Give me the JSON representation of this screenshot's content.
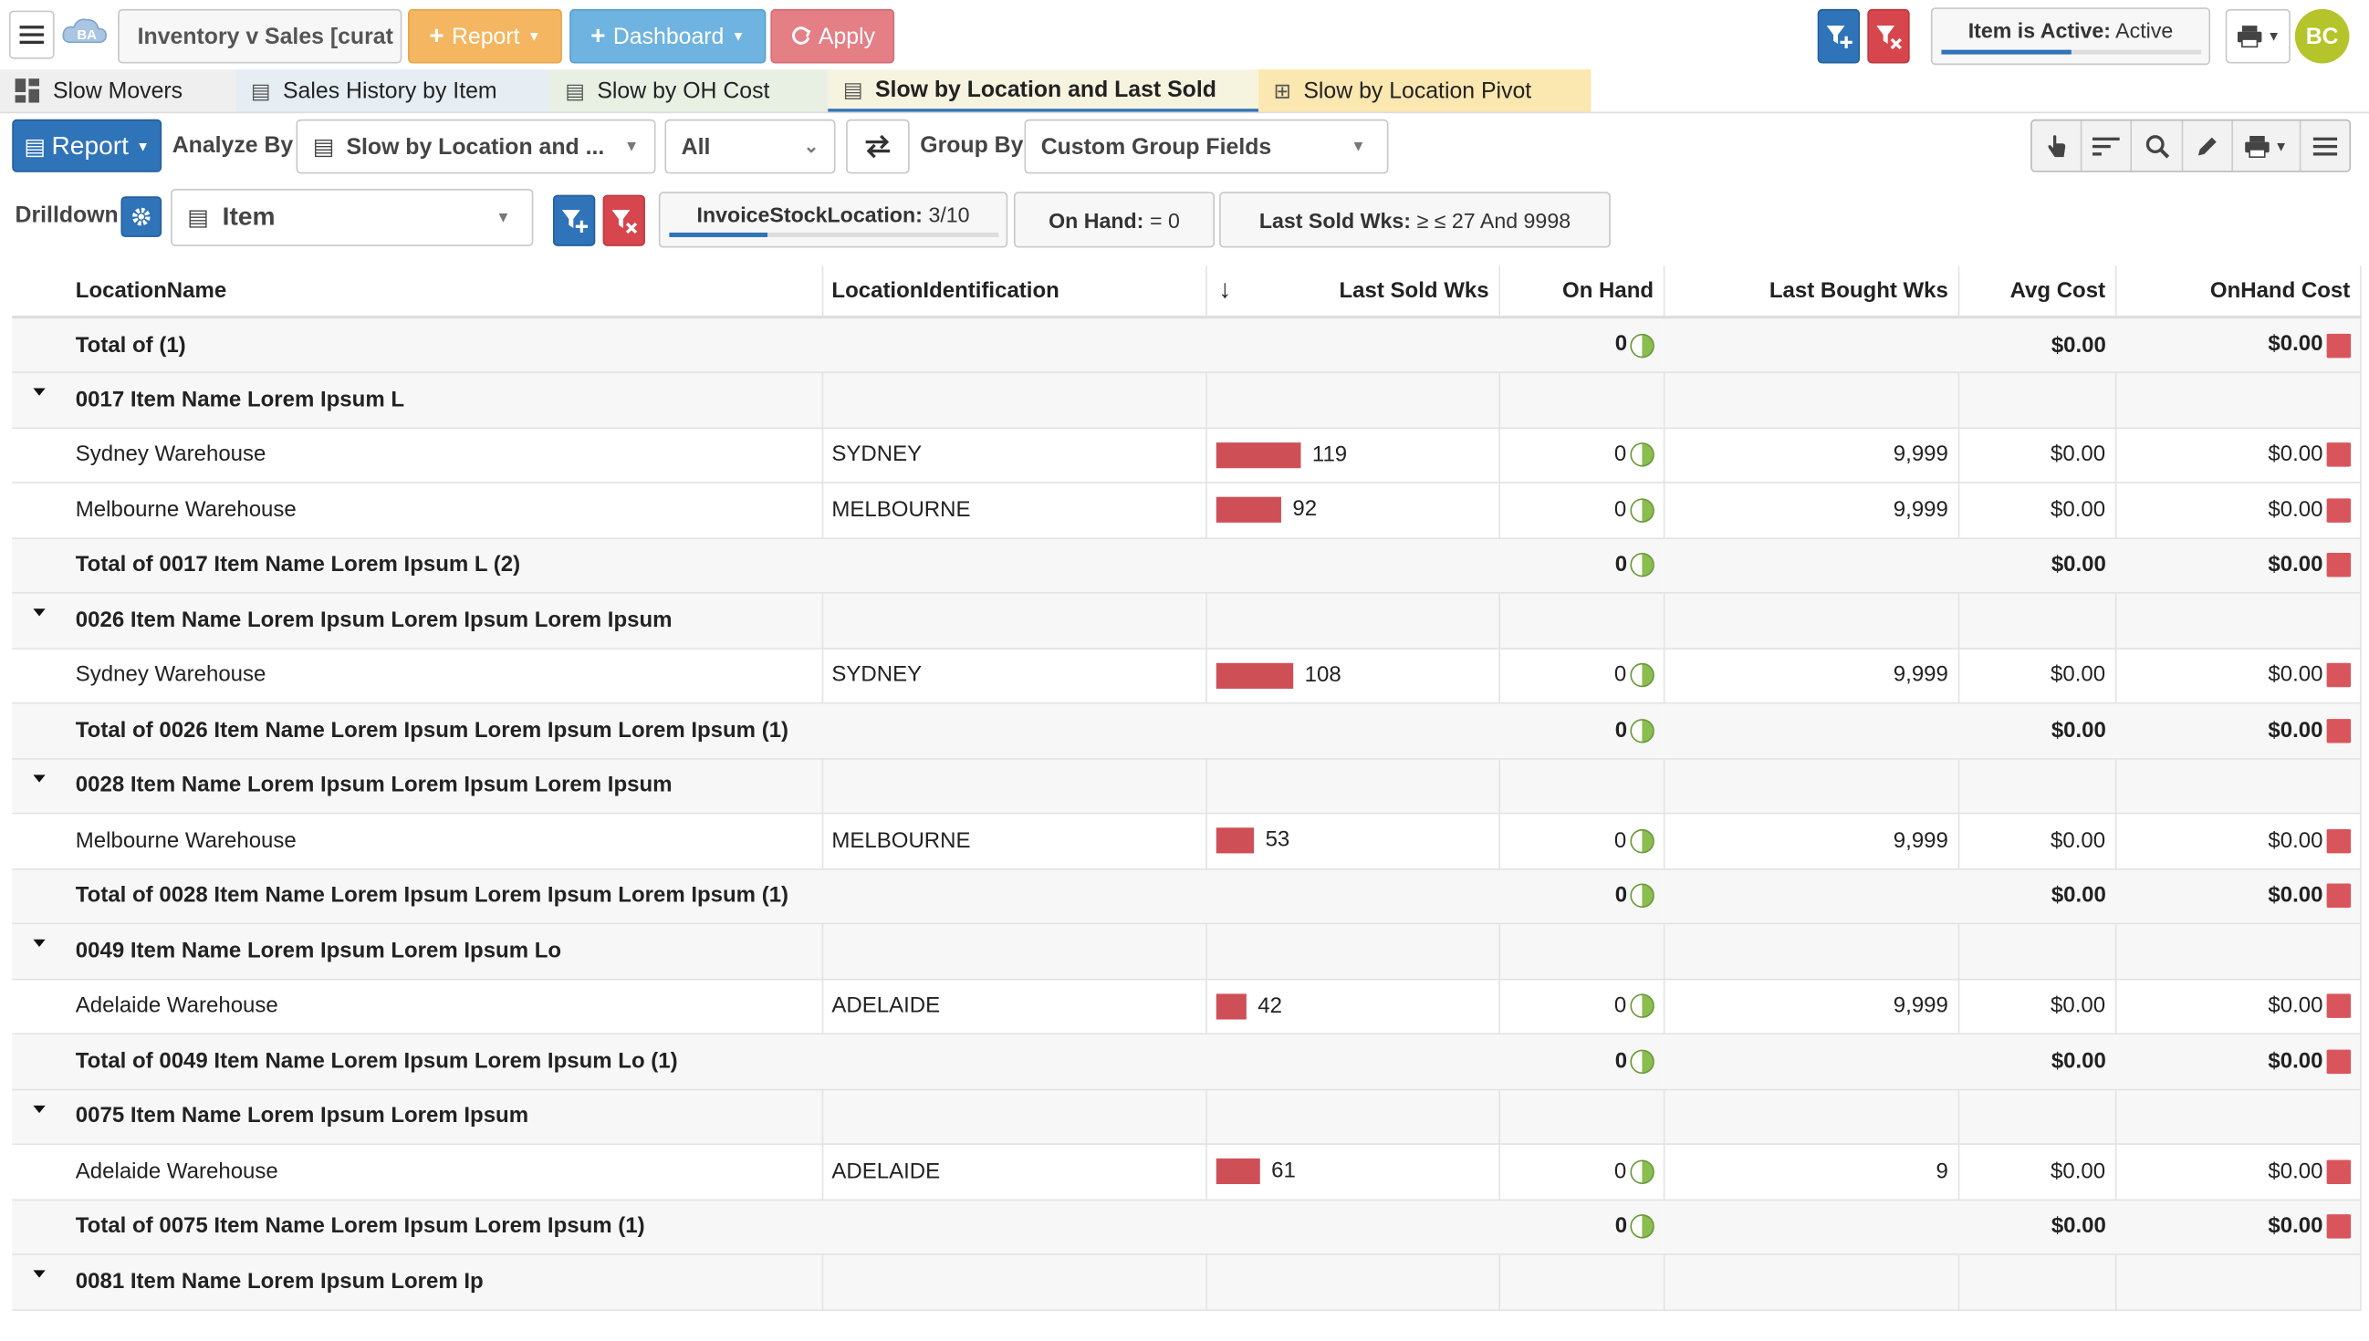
{
  "header": {
    "report_title": "Inventory v Sales [curat",
    "report_btn": "Report",
    "dashboard_btn": "Dashboard",
    "apply_btn": "Apply",
    "status_label": "Item is Active:",
    "status_value": "Active",
    "avatar": "BC"
  },
  "tabs": [
    {
      "label": "Slow Movers"
    },
    {
      "label": "Sales History by Item"
    },
    {
      "label": "Slow by OH Cost"
    },
    {
      "label": "Slow by Location and Last Sold"
    },
    {
      "label": "Slow by Location Pivot"
    }
  ],
  "toolbar": {
    "report_btn": "Report",
    "analyze_by_label": "Analyze By",
    "analyze_by_value": "Slow by Location and ...",
    "scope_value": "All",
    "group_by_label": "Group By",
    "group_by_value": "Custom Group Fields",
    "drilldown_label": "Drilldown",
    "drilldown_value": "Item"
  },
  "filters": [
    {
      "key": "InvoiceStockLocation:",
      "value": "3/10"
    },
    {
      "key": "On Hand:",
      "value": "= 0"
    },
    {
      "key": "Last Sold Wks:",
      "value": "≥ ≤ 27 And 9998"
    }
  ],
  "columns": [
    "LocationName",
    "LocationIdentification",
    "↓",
    "Last Sold Wks",
    "On Hand",
    "Last Bought Wks",
    "Avg Cost",
    "OnHand Cost"
  ],
  "rows": [
    {
      "type": "total",
      "name": "Total of (1)",
      "onhand": "0",
      "avg": "$0.00",
      "cost": "$0.00"
    },
    {
      "type": "group",
      "name": "0017 Item Name Lorem Ipsum L"
    },
    {
      "type": "data",
      "name": "Sydney Warehouse",
      "loc": "SYDNEY",
      "lastsold": 119,
      "onhand": "0",
      "bought": "9,999",
      "avg": "$0.00",
      "cost": "$0.00"
    },
    {
      "type": "data",
      "name": "Melbourne Warehouse",
      "loc": "MELBOURNE",
      "lastsold": 92,
      "onhand": "0",
      "bought": "9,999",
      "avg": "$0.00",
      "cost": "$0.00"
    },
    {
      "type": "total",
      "name": "Total of 0017 Item Name Lorem Ipsum L (2)",
      "onhand": "0",
      "avg": "$0.00",
      "cost": "$0.00"
    },
    {
      "type": "group",
      "name": "0026 Item Name Lorem Ipsum Lorem Ipsum Lorem Ipsum"
    },
    {
      "type": "data",
      "name": "Sydney Warehouse",
      "loc": "SYDNEY",
      "lastsold": 108,
      "onhand": "0",
      "bought": "9,999",
      "avg": "$0.00",
      "cost": "$0.00"
    },
    {
      "type": "total",
      "name": "Total of 0026 Item Name Lorem Ipsum Lorem Ipsum Lorem Ipsum (1)",
      "onhand": "0",
      "avg": "$0.00",
      "cost": "$0.00"
    },
    {
      "type": "group",
      "name": "0028 Item Name Lorem Ipsum Lorem Ipsum Lorem Ipsum"
    },
    {
      "type": "data",
      "name": "Melbourne Warehouse",
      "loc": "MELBOURNE",
      "lastsold": 53,
      "onhand": "0",
      "bought": "9,999",
      "avg": "$0.00",
      "cost": "$0.00"
    },
    {
      "type": "total",
      "name": "Total of 0028 Item Name Lorem Ipsum Lorem Ipsum Lorem Ipsum (1)",
      "onhand": "0",
      "avg": "$0.00",
      "cost": "$0.00"
    },
    {
      "type": "group",
      "name": "0049 Item Name Lorem Ipsum Lorem Ipsum Lo"
    },
    {
      "type": "data",
      "name": "Adelaide Warehouse",
      "loc": "ADELAIDE",
      "lastsold": 42,
      "onhand": "0",
      "bought": "9,999",
      "avg": "$0.00",
      "cost": "$0.00"
    },
    {
      "type": "total",
      "name": "Total of 0049 Item Name Lorem Ipsum Lorem Ipsum Lo (1)",
      "onhand": "0",
      "avg": "$0.00",
      "cost": "$0.00"
    },
    {
      "type": "group",
      "name": "0075 Item Name Lorem Ipsum Lorem Ipsum"
    },
    {
      "type": "data",
      "name": "Adelaide Warehouse",
      "loc": "ADELAIDE",
      "lastsold": 61,
      "onhand": "0",
      "bought": "9",
      "avg": "$0.00",
      "cost": "$0.00"
    },
    {
      "type": "total",
      "name": "Total of 0075 Item Name Lorem Ipsum Lorem Ipsum (1)",
      "onhand": "0",
      "avg": "$0.00",
      "cost": "$0.00"
    },
    {
      "type": "group",
      "name": "0081 Item Name Lorem Ipsum Lorem Ip"
    }
  ],
  "colors": {
    "bar": "#cf4f57",
    "accent": "#2f73b8",
    "filter_red": "#d7464c",
    "avatar": "#b5c42a"
  }
}
